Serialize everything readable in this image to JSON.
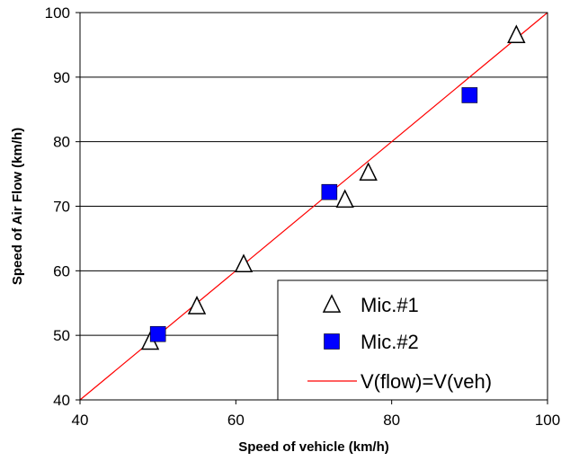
{
  "chart_data": {
    "type": "scatter",
    "title": "",
    "xlabel": "Speed of vehicle (km/h)",
    "ylabel": "Speed of Air Flow (km/h)",
    "xlim": [
      40,
      100
    ],
    "ylim": [
      40,
      100
    ],
    "x_ticks": [
      40,
      60,
      80,
      100
    ],
    "y_ticks": [
      40,
      50,
      60,
      70,
      80,
      90,
      100
    ],
    "grid": "horizontal",
    "legend_position": "bottom-right",
    "series": [
      {
        "name": "Mic.#1",
        "marker": "open-triangle",
        "color": "#000000",
        "points": [
          [
            49,
            49
          ],
          [
            55,
            54.5
          ],
          [
            61,
            61
          ],
          [
            74,
            71
          ],
          [
            77,
            75.2
          ],
          [
            96,
            96.5
          ]
        ]
      },
      {
        "name": "Mic.#2",
        "marker": "filled-square",
        "color": "#0000FF",
        "points": [
          [
            50,
            50.2
          ],
          [
            72,
            72.2
          ],
          [
            90,
            87.2
          ]
        ]
      },
      {
        "name": "V(flow)=V(veh)",
        "marker": "line",
        "color": "#FF0000",
        "points": [
          [
            40,
            40
          ],
          [
            100,
            100
          ]
        ]
      }
    ]
  }
}
